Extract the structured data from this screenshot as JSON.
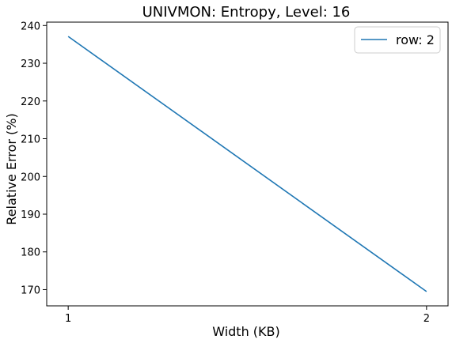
{
  "chart_data": {
    "type": "line",
    "title": "UNIVMON: Entropy, Level: 16",
    "xlabel": "Width (KB)",
    "ylabel": "Relative Error (%)",
    "x": [
      1,
      2
    ],
    "xticks": [
      1,
      2
    ],
    "xlim": [
      0.94,
      2.06
    ],
    "yticks": [
      170,
      180,
      190,
      200,
      210,
      220,
      230,
      240
    ],
    "ylim": [
      165.7,
      240.9
    ],
    "grid": false,
    "legend_position": "top-right",
    "series": [
      {
        "name": "row: 2",
        "color": "#1f77b4",
        "values": [
          237.1,
          169.5
        ]
      }
    ]
  }
}
